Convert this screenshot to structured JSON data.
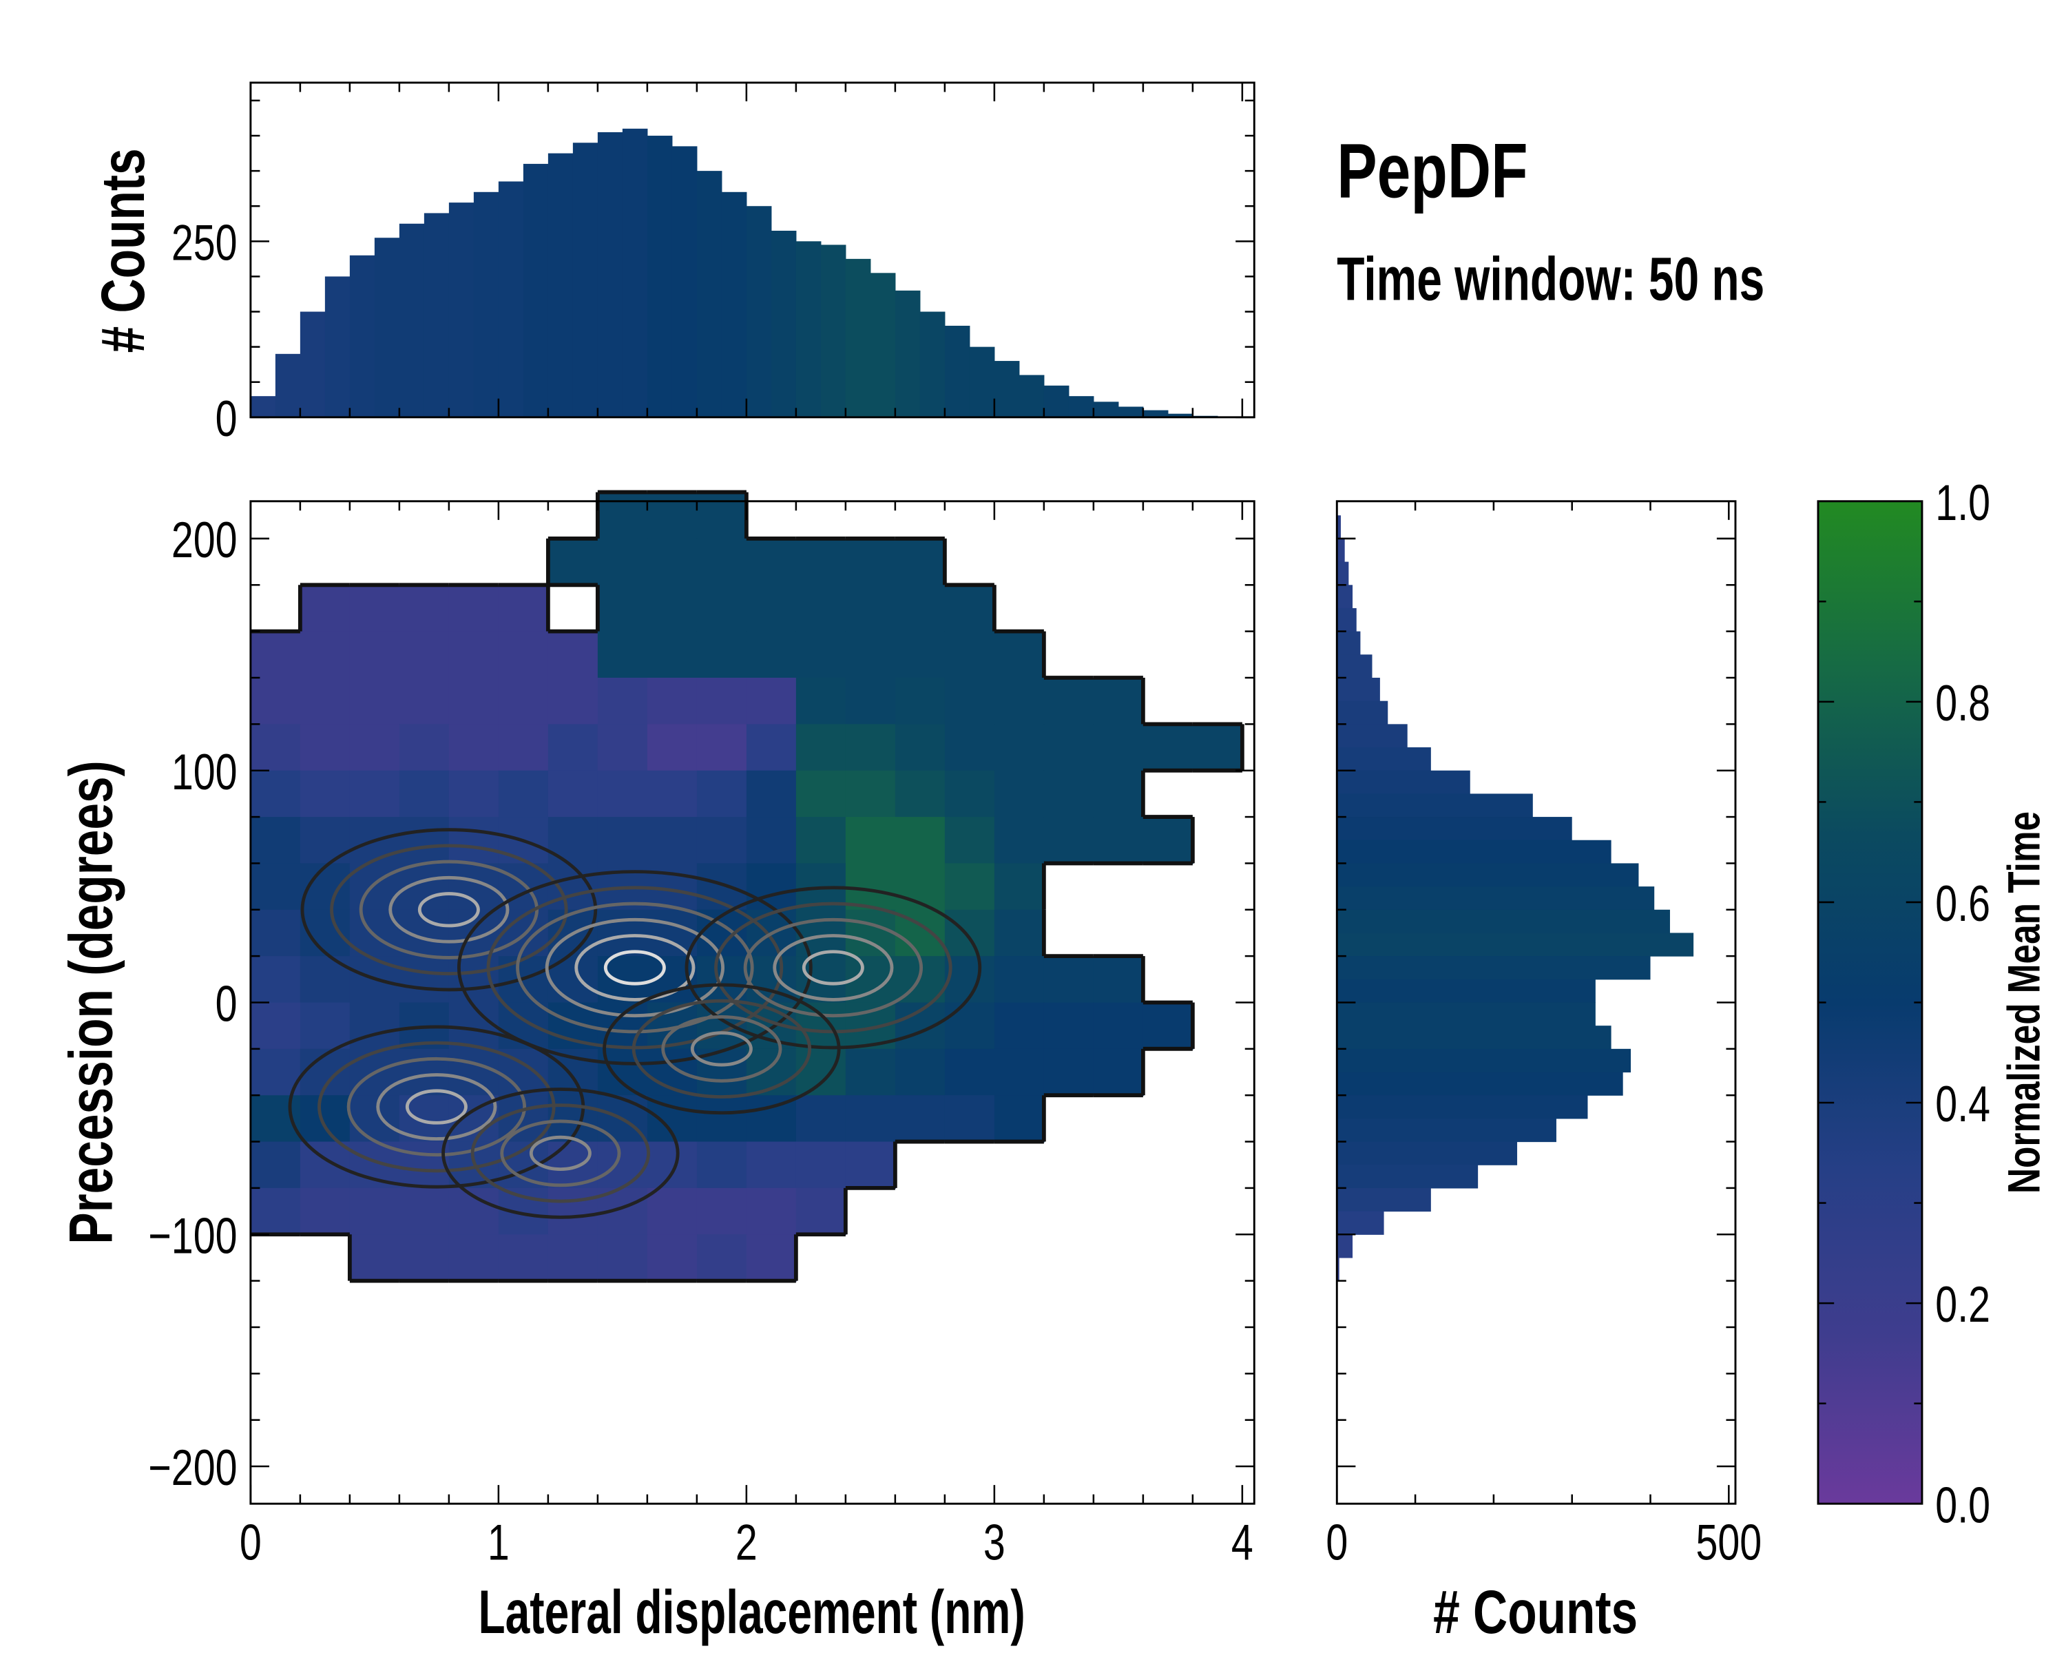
{
  "title": "PepDF",
  "subtitle": "Time window: 50 ns",
  "chart_data": [
    {
      "type": "heatmap",
      "name": "main",
      "xlabel": "Lateral displacement (nm)",
      "ylabel": "Precession (degrees)",
      "xlim": [
        0,
        4.05
      ],
      "ylim": [
        -216,
        216
      ],
      "xticks": [
        0,
        1,
        2,
        3,
        4
      ],
      "yticks": [
        -200,
        -100,
        0,
        100,
        200
      ],
      "x_bin_starts": [
        0,
        0.2,
        0.4,
        0.6,
        0.8,
        1.0,
        1.2,
        1.4,
        1.6,
        1.8,
        2.0,
        2.2,
        2.4,
        2.6,
        2.8,
        3.0,
        3.2,
        3.4,
        3.6,
        3.8
      ],
      "x_bin_width": 0.2,
      "y_bin_starts": [
        200,
        180,
        160,
        140,
        120,
        100,
        80,
        60,
        40,
        20,
        0,
        -20,
        -40,
        -60,
        -80,
        -100,
        -120
      ],
      "y_bin_height": 20,
      "values": [
        [
          null,
          null,
          null,
          null,
          null,
          null,
          null,
          0.6,
          0.6,
          0.6,
          null,
          null,
          null,
          null,
          null,
          null,
          null,
          null,
          null,
          null
        ],
        [
          null,
          null,
          null,
          null,
          null,
          null,
          0.6,
          0.6,
          0.6,
          0.6,
          0.6,
          0.6,
          0.6,
          0.6,
          null,
          null,
          null,
          null,
          null,
          null
        ],
        [
          null,
          0.2,
          0.2,
          0.2,
          0.2,
          0.2,
          null,
          0.6,
          0.6,
          0.6,
          0.6,
          0.6,
          0.6,
          0.6,
          0.6,
          null,
          null,
          null,
          null,
          null
        ],
        [
          0.2,
          0.2,
          0.2,
          0.2,
          0.2,
          0.2,
          0.2,
          0.6,
          0.6,
          0.6,
          0.6,
          0.6,
          0.6,
          0.6,
          0.6,
          0.6,
          null,
          null,
          null,
          null
        ],
        [
          0.2,
          0.2,
          0.2,
          0.2,
          0.2,
          0.2,
          0.2,
          0.25,
          0.2,
          0.2,
          0.2,
          0.62,
          0.6,
          0.62,
          0.6,
          0.6,
          0.6,
          0.6,
          null,
          null
        ],
        [
          0.25,
          0.2,
          0.2,
          0.25,
          0.2,
          0.2,
          0.3,
          0.25,
          0.15,
          0.15,
          0.3,
          0.7,
          0.7,
          0.65,
          0.6,
          0.6,
          0.6,
          0.6,
          0.6,
          0.6
        ],
        [
          0.35,
          0.3,
          0.3,
          0.35,
          0.3,
          0.35,
          0.3,
          0.3,
          0.3,
          0.35,
          0.45,
          0.75,
          0.75,
          0.7,
          0.65,
          0.6,
          0.6,
          0.6,
          null,
          null
        ],
        [
          0.45,
          0.4,
          0.4,
          0.4,
          0.35,
          0.35,
          0.4,
          0.4,
          0.4,
          0.4,
          0.45,
          0.7,
          0.8,
          0.8,
          0.7,
          0.6,
          0.6,
          0.6,
          0.6,
          null
        ],
        [
          0.45,
          0.45,
          0.4,
          0.4,
          0.4,
          0.4,
          0.4,
          0.4,
          0.4,
          0.45,
          0.5,
          0.65,
          0.8,
          0.8,
          0.75,
          0.65,
          null,
          null,
          null,
          null
        ],
        [
          0.4,
          0.45,
          0.4,
          0.4,
          0.4,
          0.4,
          0.45,
          0.45,
          0.45,
          0.5,
          0.55,
          0.65,
          0.75,
          0.8,
          0.7,
          0.6,
          null,
          null,
          null,
          null
        ],
        [
          0.35,
          0.4,
          0.4,
          0.4,
          0.4,
          0.45,
          0.45,
          0.5,
          0.5,
          0.55,
          0.6,
          0.65,
          0.7,
          0.7,
          0.6,
          0.55,
          0.55,
          0.55,
          null,
          null
        ],
        [
          0.3,
          0.35,
          0.4,
          0.45,
          0.4,
          0.45,
          0.5,
          0.5,
          0.55,
          0.6,
          0.65,
          0.7,
          0.7,
          0.6,
          0.55,
          0.5,
          0.5,
          0.5,
          0.5,
          null
        ],
        [
          0.35,
          0.4,
          0.4,
          0.4,
          0.4,
          0.4,
          0.45,
          0.5,
          0.5,
          0.55,
          0.65,
          0.7,
          0.6,
          0.55,
          0.5,
          0.5,
          0.5,
          0.5,
          null,
          null
        ],
        [
          0.55,
          0.5,
          0.4,
          0.35,
          0.35,
          0.4,
          0.45,
          0.45,
          0.5,
          0.5,
          0.5,
          0.45,
          0.45,
          0.45,
          0.45,
          0.5,
          null,
          null,
          null,
          null
        ],
        [
          0.4,
          0.3,
          0.3,
          0.3,
          0.35,
          0.35,
          0.3,
          0.3,
          0.3,
          0.35,
          0.3,
          0.3,
          0.3,
          null,
          null,
          null,
          null,
          null,
          null,
          null
        ],
        [
          0.3,
          0.25,
          0.25,
          0.25,
          0.25,
          0.3,
          0.25,
          0.25,
          0.2,
          0.2,
          0.2,
          0.25,
          null,
          null,
          null,
          null,
          null,
          null,
          null,
          null
        ],
        [
          null,
          null,
          0.25,
          0.25,
          0.25,
          0.25,
          0.25,
          0.25,
          0.2,
          0.25,
          0.2,
          null,
          null,
          null,
          null,
          null,
          null,
          null,
          null,
          null
        ]
      ],
      "density_peaks": [
        {
          "x": 0.8,
          "y": 40,
          "level": 4
        },
        {
          "x": 1.55,
          "y": 15,
          "level": 5
        },
        {
          "x": 2.35,
          "y": 15,
          "level": 4
        },
        {
          "x": 0.75,
          "y": -45,
          "level": 4
        },
        {
          "x": 1.25,
          "y": -65,
          "level": 3
        },
        {
          "x": 1.9,
          "y": -20,
          "level": 3
        }
      ]
    },
    {
      "type": "bar",
      "name": "top-histogram",
      "ylabel": "# Counts",
      "xlim": [
        0,
        4.05
      ],
      "ylim": [
        0,
        475
      ],
      "yticks": [
        0,
        250
      ],
      "bin_width": 0.1,
      "x_bin_starts": [
        0,
        0.1,
        0.2,
        0.3,
        0.4,
        0.5,
        0.6,
        0.7,
        0.8,
        0.9,
        1.0,
        1.1,
        1.2,
        1.3,
        1.4,
        1.5,
        1.6,
        1.7,
        1.8,
        1.9,
        2.0,
        2.1,
        2.2,
        2.3,
        2.4,
        2.5,
        2.6,
        2.7,
        2.8,
        2.9,
        3.0,
        3.1,
        3.2,
        3.3,
        3.4,
        3.5,
        3.6,
        3.7,
        3.8
      ],
      "values": [
        30,
        90,
        150,
        200,
        230,
        255,
        275,
        290,
        305,
        320,
        335,
        360,
        375,
        390,
        405,
        410,
        400,
        385,
        350,
        320,
        300,
        265,
        250,
        245,
        225,
        205,
        180,
        150,
        130,
        100,
        80,
        60,
        45,
        30,
        22,
        15,
        10,
        5,
        2
      ],
      "mean_time": [
        0.38,
        0.4,
        0.4,
        0.42,
        0.44,
        0.45,
        0.45,
        0.45,
        0.45,
        0.46,
        0.46,
        0.48,
        0.48,
        0.48,
        0.48,
        0.48,
        0.5,
        0.5,
        0.52,
        0.52,
        0.55,
        0.58,
        0.62,
        0.66,
        0.68,
        0.68,
        0.66,
        0.62,
        0.58,
        0.58,
        0.58,
        0.58,
        0.56,
        0.55,
        0.55,
        0.55,
        0.55,
        0.55,
        0.55
      ]
    },
    {
      "type": "bar",
      "orientation": "horizontal",
      "name": "right-histogram",
      "xlabel": "# Counts",
      "xlim": [
        0,
        508
      ],
      "xticks": [
        0,
        500
      ],
      "ylim": [
        -216,
        216
      ],
      "bin_height": 10,
      "y_bin_starts": [
        200,
        190,
        180,
        170,
        160,
        150,
        140,
        130,
        120,
        110,
        100,
        90,
        80,
        70,
        60,
        50,
        40,
        30,
        20,
        10,
        0,
        -10,
        -20,
        -30,
        -40,
        -50,
        -60,
        -70,
        -80,
        -90,
        -100,
        -110,
        -120
      ],
      "values": [
        5,
        10,
        15,
        20,
        25,
        30,
        45,
        55,
        65,
        90,
        120,
        170,
        250,
        300,
        350,
        385,
        405,
        425,
        455,
        400,
        330,
        330,
        350,
        375,
        365,
        320,
        280,
        230,
        180,
        120,
        60,
        20,
        3
      ],
      "mean_time": [
        0.3,
        0.3,
        0.32,
        0.34,
        0.36,
        0.38,
        0.38,
        0.38,
        0.4,
        0.4,
        0.42,
        0.44,
        0.46,
        0.48,
        0.5,
        0.52,
        0.55,
        0.58,
        0.6,
        0.55,
        0.52,
        0.55,
        0.55,
        0.52,
        0.5,
        0.48,
        0.46,
        0.44,
        0.42,
        0.38,
        0.34,
        0.3,
        0.28
      ]
    },
    {
      "type": "colorbar",
      "name": "colorbar",
      "label": "Normalized Mean Time",
      "range": [
        0,
        1
      ],
      "ticks": [
        "0.0",
        "0.2",
        "0.4",
        "0.6",
        "0.8",
        "1.0"
      ],
      "colors": [
        "#6a3a9c",
        "#3f3d8e",
        "#263f86",
        "#083b6e",
        "#0b4a60",
        "#166a45",
        "#228a22"
      ]
    }
  ]
}
